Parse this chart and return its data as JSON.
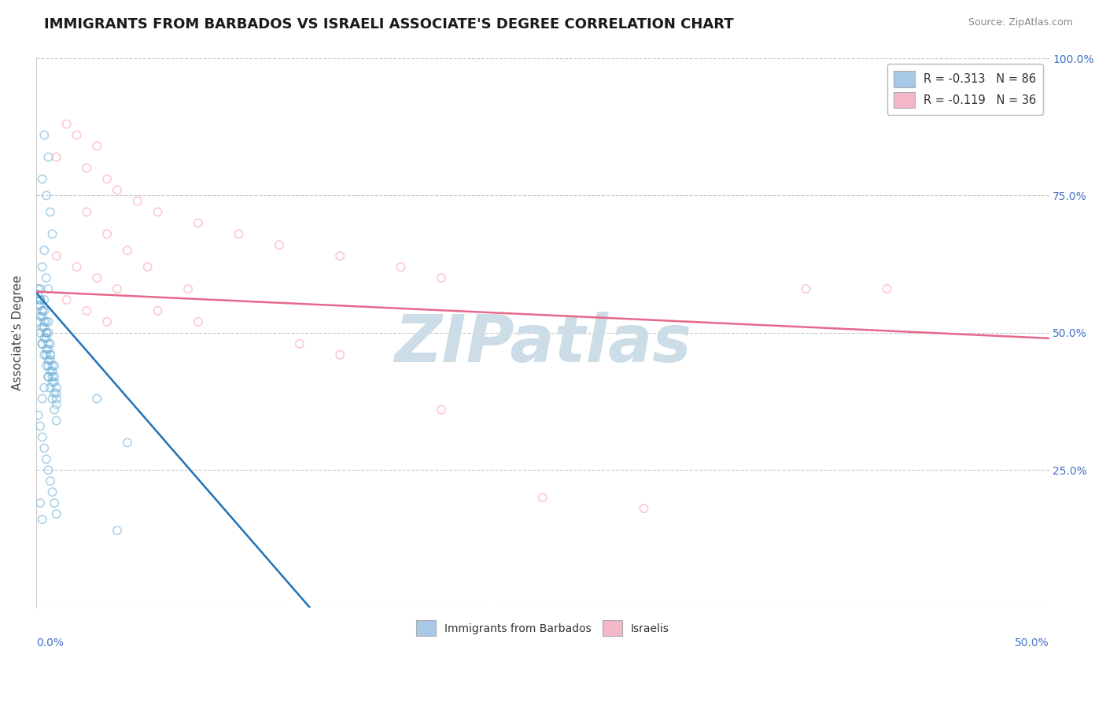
{
  "title": "IMMIGRANTS FROM BARBADOS VS ISRAELI ASSOCIATE'S DEGREE CORRELATION CHART",
  "source_text": "Source: ZipAtlas.com",
  "ylabel": "Associate's Degree",
  "xmin": 0.0,
  "xmax": 0.5,
  "ymin": 0.0,
  "ymax": 1.0,
  "legend_entries": [
    {
      "label": "R = -0.313   N = 86",
      "color": "#a8c8e8"
    },
    {
      "label": "R = -0.119   N = 36",
      "color": "#f4b8c8"
    }
  ],
  "legend_bottom": [
    {
      "label": "Immigrants from Barbados",
      "color": "#a8c8e8"
    },
    {
      "label": "Israelis",
      "color": "#f4b8c8"
    }
  ],
  "blue_scatter_x": [
    0.004,
    0.006,
    0.003,
    0.005,
    0.007,
    0.008,
    0.004,
    0.003,
    0.005,
    0.006,
    0.002,
    0.004,
    0.006,
    0.005,
    0.003,
    0.007,
    0.009,
    0.006,
    0.004,
    0.003,
    0.002,
    0.003,
    0.005,
    0.006,
    0.007,
    0.002,
    0.004,
    0.005,
    0.006,
    0.008,
    0.001,
    0.002,
    0.003,
    0.004,
    0.005,
    0.006,
    0.007,
    0.008,
    0.009,
    0.01,
    0.001,
    0.002,
    0.003,
    0.004,
    0.005,
    0.006,
    0.007,
    0.008,
    0.009,
    0.01,
    0.001,
    0.002,
    0.003,
    0.004,
    0.005,
    0.006,
    0.007,
    0.008,
    0.009,
    0.01,
    0.001,
    0.002,
    0.003,
    0.004,
    0.005,
    0.006,
    0.007,
    0.008,
    0.009,
    0.01,
    0.001,
    0.002,
    0.003,
    0.004,
    0.005,
    0.006,
    0.007,
    0.008,
    0.009,
    0.01,
    0.03,
    0.045,
    0.002,
    0.003,
    0.04,
    0.01
  ],
  "blue_scatter_y": [
    0.86,
    0.82,
    0.78,
    0.75,
    0.72,
    0.68,
    0.65,
    0.62,
    0.6,
    0.58,
    0.56,
    0.54,
    0.52,
    0.5,
    0.48,
    0.46,
    0.44,
    0.42,
    0.4,
    0.38,
    0.56,
    0.54,
    0.52,
    0.5,
    0.48,
    0.58,
    0.56,
    0.46,
    0.44,
    0.42,
    0.58,
    0.56,
    0.54,
    0.52,
    0.5,
    0.48,
    0.46,
    0.44,
    0.42,
    0.4,
    0.55,
    0.53,
    0.51,
    0.49,
    0.47,
    0.45,
    0.43,
    0.41,
    0.39,
    0.37,
    0.57,
    0.55,
    0.53,
    0.51,
    0.49,
    0.47,
    0.45,
    0.43,
    0.41,
    0.39,
    0.52,
    0.5,
    0.48,
    0.46,
    0.44,
    0.42,
    0.4,
    0.38,
    0.36,
    0.34,
    0.35,
    0.33,
    0.31,
    0.29,
    0.27,
    0.25,
    0.23,
    0.21,
    0.19,
    0.17,
    0.38,
    0.3,
    0.19,
    0.16,
    0.14,
    0.38
  ],
  "pink_scatter_x": [
    0.015,
    0.02,
    0.03,
    0.01,
    0.025,
    0.035,
    0.04,
    0.05,
    0.06,
    0.08,
    0.1,
    0.12,
    0.15,
    0.18,
    0.2,
    0.025,
    0.035,
    0.045,
    0.055,
    0.075,
    0.38,
    0.42,
    0.015,
    0.025,
    0.035,
    0.01,
    0.02,
    0.03,
    0.04,
    0.06,
    0.08,
    0.13,
    0.15,
    0.2,
    0.25,
    0.3
  ],
  "pink_scatter_y": [
    0.88,
    0.86,
    0.84,
    0.82,
    0.8,
    0.78,
    0.76,
    0.74,
    0.72,
    0.7,
    0.68,
    0.66,
    0.64,
    0.62,
    0.6,
    0.72,
    0.68,
    0.65,
    0.62,
    0.58,
    0.58,
    0.58,
    0.56,
    0.54,
    0.52,
    0.64,
    0.62,
    0.6,
    0.58,
    0.54,
    0.52,
    0.48,
    0.46,
    0.36,
    0.2,
    0.18
  ],
  "blue_line_x": [
    0.0,
    0.135
  ],
  "blue_line_y": [
    0.573,
    0.0
  ],
  "pink_line_x": [
    0.0,
    0.5
  ],
  "pink_line_y": [
    0.575,
    0.49
  ],
  "blue_dot_color": "#6baed6",
  "pink_dot_color": "#fc9cb4",
  "blue_line_color": "#2171b5",
  "pink_line_color": "#e8688a",
  "watermark": "ZIPatlas",
  "watermark_color": "#ccdde8",
  "background_color": "#ffffff",
  "grid_color": "#c8c8c8",
  "yticks": [
    0.0,
    0.25,
    0.5,
    0.75,
    1.0
  ],
  "right_ytick_labels": [
    "",
    "25.0%",
    "50.0%",
    "75.0%",
    "100.0%"
  ],
  "title_fontsize": 13,
  "axis_label_fontsize": 11,
  "dot_size": 55,
  "dot_alpha": 0.55
}
